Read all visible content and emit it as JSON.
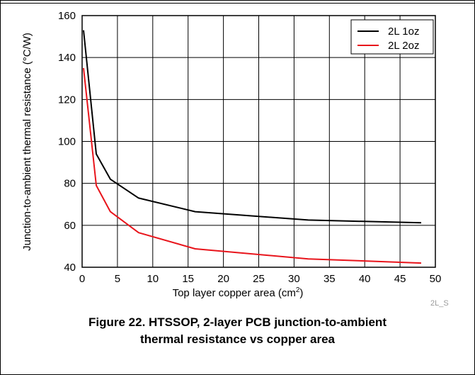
{
  "chart_data": {
    "type": "line",
    "xlabel_main": "Top layer copper area (cm",
    "xlabel_sup": "2",
    "xlabel_end": ")",
    "ylabel": "Junction-to-ambient thermal resistance (°C/W)",
    "xlim": [
      0,
      50
    ],
    "ylim": [
      40,
      160
    ],
    "xticks": [
      0,
      5,
      10,
      15,
      20,
      25,
      30,
      35,
      40,
      45,
      50
    ],
    "yticks": [
      40,
      60,
      80,
      100,
      120,
      140,
      160
    ],
    "grid": true,
    "legend_position": "top-right",
    "series": [
      {
        "name": "2L 1oz",
        "color": "#000000",
        "x": [
          0.2,
          2,
          4,
          8,
          16,
          32,
          48
        ],
        "y": [
          153,
          94,
          82,
          73,
          66.5,
          62.5,
          61.2
        ]
      },
      {
        "name": "2L 2oz",
        "color": "#e8141b",
        "x": [
          0.2,
          2,
          4,
          8,
          16,
          32,
          48
        ],
        "y": [
          135,
          79,
          66.5,
          56.5,
          48.8,
          44,
          42
        ]
      }
    ]
  },
  "tag": "2L_S",
  "caption_line1": "Figure 22. HTSSOP, 2-layer PCB junction-to-ambient",
  "caption_line2": "thermal resistance vs copper area"
}
